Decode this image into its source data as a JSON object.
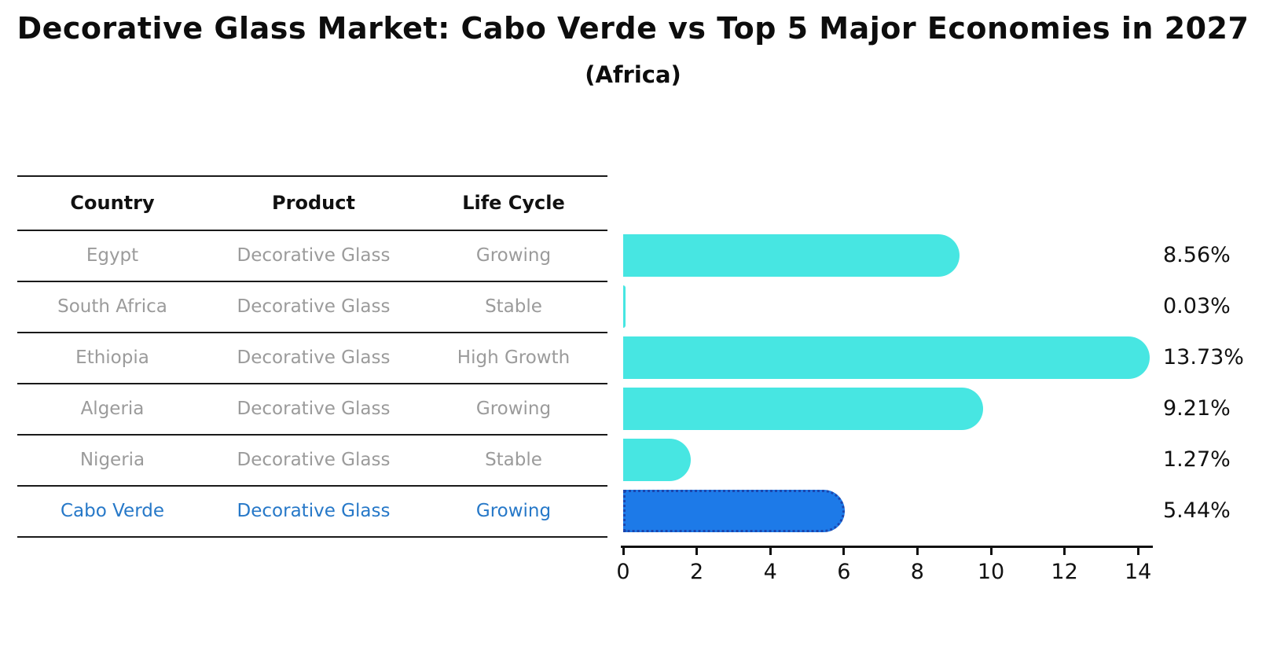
{
  "title": "Decorative Glass Market: Cabo Verde vs Top 5 Major Economies in 2027",
  "subtitle": "(Africa)",
  "table": {
    "columns": [
      "Country",
      "Product",
      "Life Cycle"
    ],
    "rows": [
      {
        "country": "Egypt",
        "product": "Decorative Glass",
        "life_cycle": "Growing",
        "highlight": false
      },
      {
        "country": "South Africa",
        "product": "Decorative Glass",
        "life_cycle": "Stable",
        "highlight": false
      },
      {
        "country": "Ethiopia",
        "product": "Decorative Glass",
        "life_cycle": "High Growth",
        "highlight": false
      },
      {
        "country": "Algeria",
        "product": "Decorative Glass",
        "life_cycle": "Growing",
        "highlight": false
      },
      {
        "country": "Nigeria",
        "product": "Decorative Glass",
        "life_cycle": "Stable",
        "highlight": false
      },
      {
        "country": "Cabo Verde",
        "product": "Decorative Glass",
        "life_cycle": "Growing",
        "highlight": true
      }
    ]
  },
  "chart_data": {
    "type": "bar",
    "orientation": "horizontal",
    "categories": [
      "Egypt",
      "South Africa",
      "Ethiopia",
      "Algeria",
      "Nigeria",
      "Cabo Verde"
    ],
    "values": [
      8.56,
      0.03,
      13.73,
      9.21,
      1.27,
      5.44
    ],
    "value_labels": [
      "8.56%",
      "0.03%",
      "13.73%",
      "9.21%",
      "1.27%",
      "5.44%"
    ],
    "title": "Decorative Glass Market: Cabo Verde vs Top 5 Major Economies in 2027",
    "subtitle": "(Africa)",
    "xlabel": "",
    "ylabel": "",
    "xlim": [
      0,
      14
    ],
    "x_ticks": [
      0,
      2,
      4,
      6,
      8,
      10,
      12,
      14
    ],
    "grid": false,
    "legend": false,
    "colors": {
      "bar": "#47e6e2",
      "highlight_bar": "#1d7ae8",
      "highlight_bar_border": "#1c46ad",
      "highlight_text": "#2678c8",
      "body_text": "#9b9b9b",
      "heading_text": "#111111"
    },
    "highlight_index": 5
  }
}
